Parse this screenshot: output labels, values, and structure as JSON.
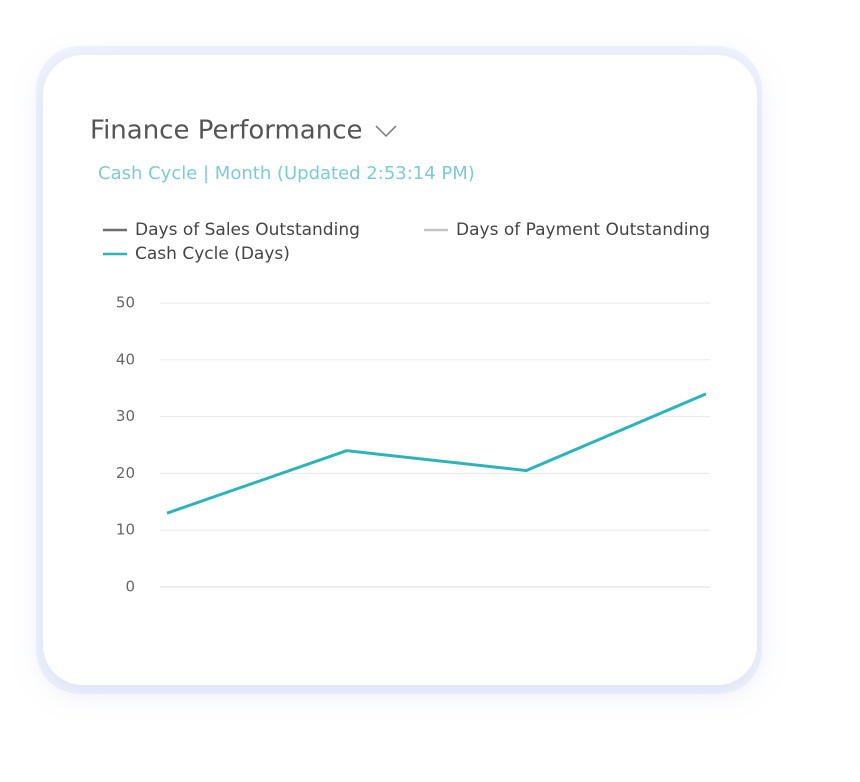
{
  "chart_data": {
    "type": "line",
    "title": "Finance Performance",
    "subtitle": "Cash Cycle | Month (Updated  2:53:14 PM)",
    "categories": [
      null,
      null,
      null,
      null
    ],
    "series": [
      {
        "name": "Days of Sales Outstanding",
        "color": "#6e6e6e",
        "values": [
          null,
          null,
          null,
          null
        ]
      },
      {
        "name": "Days of Payment Outstanding",
        "color": "#c4c4c4",
        "values": [
          null,
          null,
          null,
          null
        ]
      },
      {
        "name": "Cash Cycle (Days)",
        "color": "#2fb3bb",
        "values": [
          13,
          24,
          20.5,
          34
        ]
      }
    ],
    "ylim": [
      0,
      50
    ],
    "yticks": [
      0,
      10,
      20,
      30,
      40,
      50
    ],
    "grid": true
  }
}
